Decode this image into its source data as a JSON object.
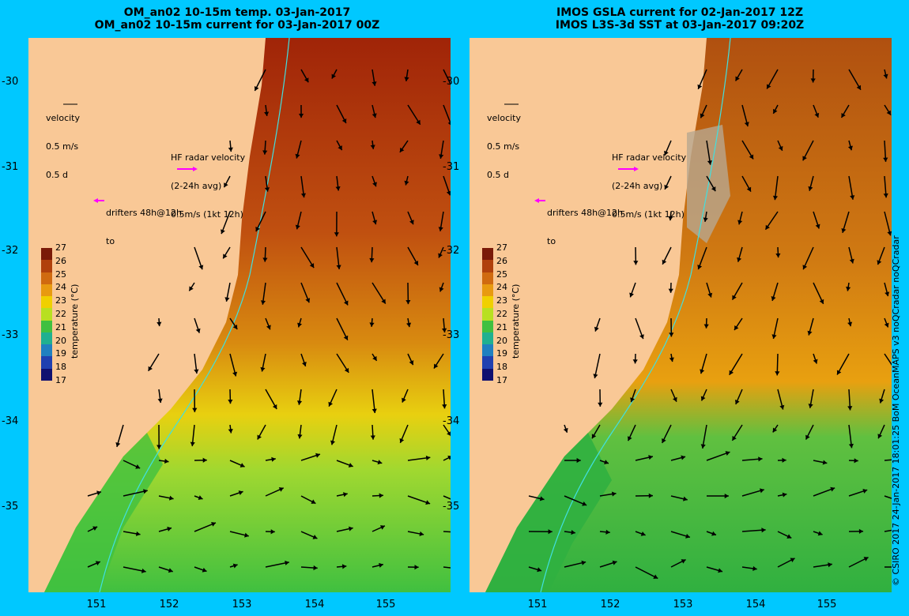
{
  "left": {
    "title_line1": "OM_an02 10-15m temp. 03-Jan-2017",
    "title_line2": "OM_an02 10-15m current for 03-Jan-2017 00Z"
  },
  "right": {
    "title_line1": "IMOS GSLA current for 02-Jan-2017 12Z",
    "title_line2": "IMOS L3S-3d SST at 03-Jan-2017 09:20Z"
  },
  "legend": {
    "velocity": "velocity",
    "vel_scale": "0.5 m/s",
    "vel_time": "0.5 d",
    "hf_line1": "HF radar velocity",
    "hf_line2": "(2-24h avg)",
    "hf_line3": "0.5m/s (1kt 12h)",
    "drifters": "drifters 48h@12h",
    "drifters_to": "to"
  },
  "colorbar": {
    "label": "temperature (°C)",
    "ticks": [
      "27",
      "26",
      "25",
      "24",
      "23",
      "22",
      "21",
      "20",
      "19",
      "18",
      "17"
    ],
    "colors": [
      "#7a1a08",
      "#b0400c",
      "#d06a10",
      "#e89a10",
      "#f0d000",
      "#b8e020",
      "#40c040",
      "#20b090",
      "#2080c0",
      "#2040b0",
      "#101070"
    ]
  },
  "axes": {
    "lat_ticks": [
      "-30",
      "-31",
      "-32",
      "-33",
      "-34",
      "-35"
    ],
    "lon_ticks": [
      "151",
      "152",
      "153",
      "154",
      "155"
    ]
  },
  "colors": {
    "land": "#f9c896",
    "background": "#00c8ff",
    "contour": "#40e0e0",
    "drifter": "#ff00ff"
  },
  "credit": "© CSIRO 2017   24-Jan-2017 18:01:25 BoM OceanMAPS v3 noQCradar noQCradar"
}
